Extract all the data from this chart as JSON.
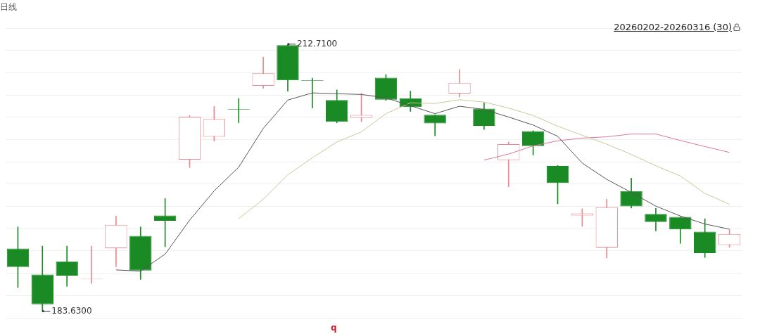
{
  "chart_data": {
    "type": "candlestick",
    "title": "日线",
    "subtitle": "20260202-20260316 (30)",
    "categories": [
      null,
      null,
      null,
      null,
      null,
      null,
      null,
      null,
      null,
      null,
      null,
      null,
      null,
      null,
      null,
      null,
      null,
      null,
      null,
      null,
      null,
      null,
      null,
      null,
      null,
      null,
      null,
      null,
      null,
      null
    ],
    "ohlc": [
      [
        190.44,
        192.8,
        186.2,
        188.44
      ],
      [
        187.62,
        190.71,
        183.63,
        184.37
      ],
      [
        189.05,
        190.71,
        186.34,
        187.5
      ],
      [
        187.1,
        190.71,
        186.64,
        187.15
      ],
      [
        190.49,
        193.99,
        188.49,
        193.03
      ],
      [
        191.82,
        192.8,
        187.08,
        188.05
      ],
      [
        194.04,
        195.89,
        190.64,
        193.47
      ],
      [
        200.13,
        204.94,
        199.26,
        204.81
      ],
      [
        202.62,
        205.92,
        202.15,
        204.55
      ],
      [
        205.65,
        206.79,
        204.15,
        205.6
      ],
      [
        208.17,
        211.3,
        207.92,
        209.53
      ],
      [
        212.6,
        212.71,
        207.58,
        208.77
      ],
      [
        208.76,
        209.01,
        205.75,
        208.72
      ],
      [
        206.62,
        207.73,
        204.13,
        204.25
      ],
      [
        204.67,
        207.36,
        204.27,
        204.99
      ],
      [
        209.06,
        209.4,
        206.57,
        206.66
      ],
      [
        206.81,
        207.6,
        205.38,
        205.85
      ],
      [
        205.01,
        205.01,
        202.72,
        204.07
      ],
      [
        207.33,
        209.95,
        206.96,
        208.51
      ],
      [
        205.68,
        206.32,
        203.41,
        203.81
      ],
      [
        200.08,
        202.05,
        197.17,
        201.81
      ],
      [
        203.24,
        203.29,
        200.63,
        201.61
      ],
      [
        199.44,
        199.51,
        195.32,
        197.59
      ],
      [
        194.04,
        194.78,
        192.86,
        194.28
      ],
      [
        190.56,
        195.82,
        189.42,
        194.95
      ],
      [
        196.7,
        198.11,
        194.85,
        195.05
      ],
      [
        194.21,
        194.82,
        192.36,
        193.34
      ],
      [
        193.89,
        193.89,
        191.01,
        192.53
      ],
      [
        192.29,
        193.69,
        189.47,
        189.94
      ],
      [
        190.83,
        192.51,
        190.58,
        192.04
      ]
    ],
    "colors": [
      "#1a8a24",
      "#1a8a24",
      "#1a8a24",
      "#e8878f",
      "#e8878f",
      "#1a8a24",
      "#1a8a24",
      "#e8878f",
      "#e8878f",
      "#1a8a24",
      "#e8878f",
      "#1a8a24",
      "#1a8a24",
      "#1a8a24",
      "#e8878f",
      "#1a8a24",
      "#1a8a24",
      "#1a8a24",
      "#e8878f",
      "#1a8a24",
      "#e8878f",
      "#1a8a24",
      "#1a8a24",
      "#e8878f",
      "#e8878f",
      "#1a8a24",
      "#1a8a24",
      "#1a8a24",
      "#1a8a24",
      "#e8878f"
    ],
    "series": [
      {
        "type": "line",
        "color": "#555555",
        "values": [
          null,
          null,
          null,
          null,
          188.12,
          187.99,
          189.84,
          193.54,
          196.73,
          199.32,
          203.53,
          206.62,
          207.4,
          207.31,
          207.23,
          206.86,
          206.0,
          205.14,
          205.95,
          205.6,
          204.77,
          203.9,
          202.67,
          199.76,
          197.98,
          196.56,
          195.07,
          193.99,
          193.12,
          192.56
        ]
      },
      {
        "type": "line",
        "color": "#c8c89a",
        "values": [
          null,
          null,
          null,
          null,
          null,
          null,
          null,
          null,
          null,
          193.71,
          195.81,
          198.48,
          200.33,
          202.05,
          203.16,
          205.14,
          206.32,
          206.25,
          206.66,
          206.4,
          205.75,
          204.94,
          203.78,
          202.79,
          201.81,
          200.7,
          199.46,
          198.35,
          196.45,
          195.27
        ]
      },
      {
        "type": "line",
        "color": "#d9779f",
        "values": [
          null,
          null,
          null,
          null,
          null,
          null,
          null,
          null,
          null,
          null,
          null,
          null,
          null,
          null,
          null,
          null,
          null,
          null,
          null,
          200.08,
          200.74,
          201.63,
          202.18,
          202.48,
          202.62,
          202.92,
          202.92,
          202.22,
          201.56,
          200.92
        ]
      }
    ],
    "annotations": [
      "212.7100",
      "183.6300",
      "q"
    ],
    "grid": "y",
    "tick_labels": false
  }
}
